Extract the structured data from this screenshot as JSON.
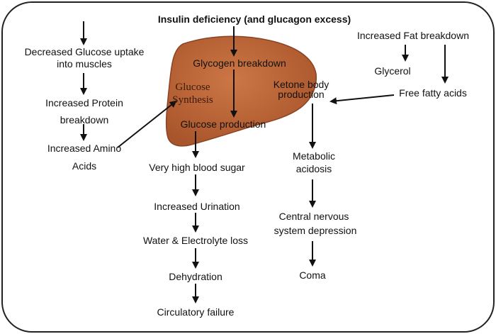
{
  "title": "Insulin deficiency (and glucagon excess)",
  "left_column": {
    "glucose_uptake": [
      "Decreased Glucose uptake",
      "into muscles"
    ],
    "protein": [
      "Increased Protein",
      "breakdown"
    ],
    "amino": [
      "Increased Amino",
      "Acids"
    ]
  },
  "liver": {
    "glycogen": "Glycogen breakdown",
    "glucose_synthesis": [
      "Glucose",
      "Synthesis"
    ],
    "glucose_production": "Glucose production",
    "ketone": [
      "Ketone body",
      "production"
    ]
  },
  "center_column": {
    "blood_sugar": "Very high blood sugar",
    "urination": "Increased Urination",
    "water_loss": "Water & Electrolyte loss",
    "dehydration": "Dehydration",
    "circulatory": "Circulatory failure"
  },
  "right_column": {
    "fat": "Increased Fat breakdown",
    "glycerol": "Glycerol",
    "ffa": "Free fatty acids",
    "acidosis": [
      "Metabolic",
      "acidosis"
    ],
    "cns": [
      "Central nervous",
      "system depression"
    ],
    "coma": "Coma"
  },
  "colors": {
    "liver_fill": "#c0673a",
    "liver_edge": "#8a4323",
    "text": "#111111",
    "frame": "#222222"
  }
}
